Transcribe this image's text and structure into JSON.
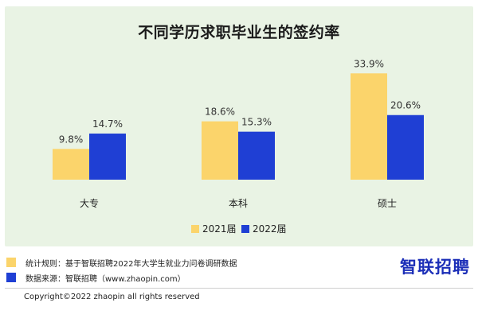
{
  "chart_data": {
    "type": "bar",
    "title": "不同学历求职毕业生的签约率",
    "categories": [
      "大专",
      "本科",
      "硕士"
    ],
    "series": [
      {
        "name": "2021届",
        "values": [
          9.8,
          18.6,
          33.9
        ],
        "labels": [
          "9.8%",
          "18.6%",
          "33.9%"
        ],
        "color": "#fbd46b"
      },
      {
        "name": "2022届",
        "values": [
          14.7,
          15.3,
          20.6
        ],
        "labels": [
          "14.7%",
          "15.3%",
          "20.6%"
        ],
        "color": "#1f3fd4"
      }
    ],
    "xlabel": "",
    "ylabel": "",
    "ylim": [
      0,
      36
    ],
    "grid": false,
    "legend_position": "bottom-center"
  },
  "notes": [
    {
      "text": "统计规则：基于智联招聘2022年大学生就业力问卷调研数据",
      "color": "#fbd46b"
    },
    {
      "text": "数据来源：智联招聘（www.zhaopin.com）",
      "color": "#1f3fd4"
    }
  ],
  "logo": "智联招聘",
  "copyright": "Copyright©2022 zhaopin all rights reserved"
}
